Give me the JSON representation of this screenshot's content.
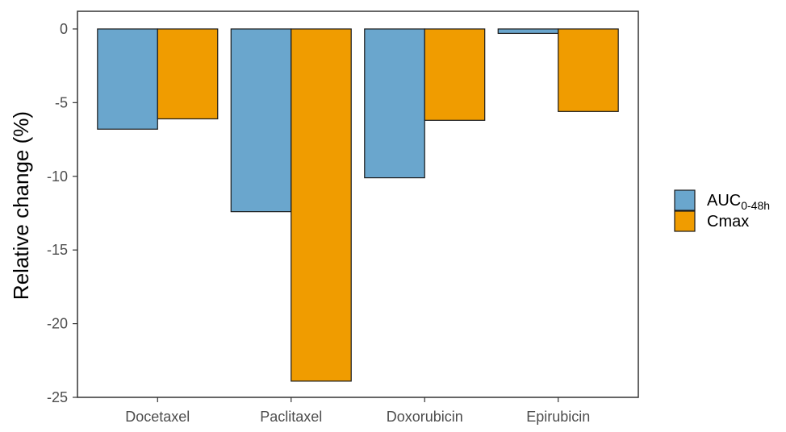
{
  "chart_data": {
    "type": "bar",
    "title": "",
    "xlabel": "",
    "ylabel": "Relative change (%)",
    "ylim": [
      -25,
      1.2
    ],
    "yticks": [
      0,
      -5,
      -10,
      -15,
      -20,
      -25
    ],
    "ytick_labels": [
      "0",
      "-5",
      "-10",
      "-15",
      "-20",
      "-25"
    ],
    "categories": [
      "Docetaxel",
      "Paclitaxel",
      "Doxorubicin",
      "Epirubicin"
    ],
    "series": [
      {
        "name": "AUC",
        "subscript": "0-48h",
        "color": "#6aa6cd",
        "values": [
          -6.8,
          -12.4,
          -10.1,
          -0.3
        ]
      },
      {
        "name": "Cmax",
        "color": "#f09c00",
        "values": [
          -6.1,
          -23.9,
          -6.2,
          -5.6
        ]
      }
    ],
    "grid": false,
    "legend": "right"
  }
}
